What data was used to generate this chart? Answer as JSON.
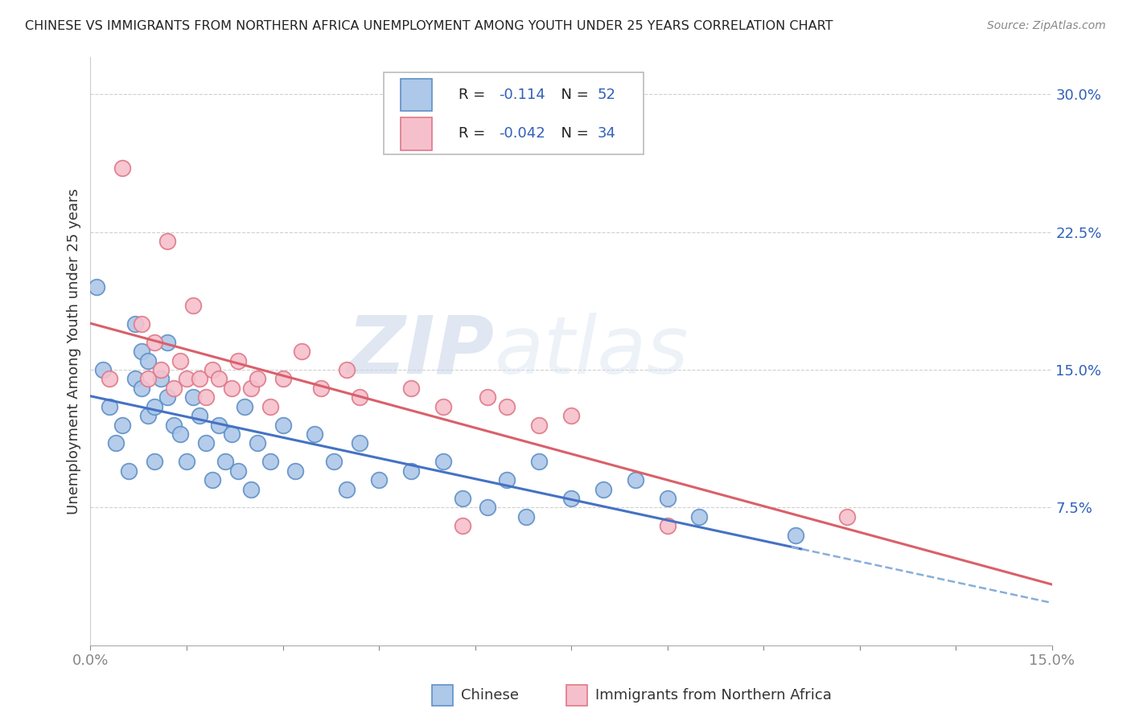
{
  "title": "CHINESE VS IMMIGRANTS FROM NORTHERN AFRICA UNEMPLOYMENT AMONG YOUTH UNDER 25 YEARS CORRELATION CHART",
  "source": "Source: ZipAtlas.com",
  "ylabel": "Unemployment Among Youth under 25 years",
  "label_chinese": "Chinese",
  "label_northern_africa": "Immigrants from Northern Africa",
  "xlim": [
    0.0,
    0.15
  ],
  "ylim": [
    0.0,
    0.32
  ],
  "yticks": [
    0.075,
    0.15,
    0.225,
    0.3
  ],
  "ytick_labels": [
    "7.5%",
    "15.0%",
    "22.5%",
    "30.0%"
  ],
  "xtick_positions": [
    0.0,
    0.015,
    0.03,
    0.045,
    0.06,
    0.075,
    0.09,
    0.105,
    0.12,
    0.135,
    0.15
  ],
  "xtick_labels_shown_pos": [
    0.0,
    0.15
  ],
  "xtick_labels_shown": [
    "0.0%",
    "15.0%"
  ],
  "r_chinese": -0.114,
  "n_chinese": 52,
  "r_northern_africa": -0.042,
  "n_northern_africa": 34,
  "color_chinese_fill": "#adc8e8",
  "color_chinese_edge": "#6090c8",
  "color_na_fill": "#f5c0cc",
  "color_na_edge": "#e07888",
  "line_color_chinese": "#4472c4",
  "line_color_na": "#d9606a",
  "line_color_dashed": "#88aed8",
  "chinese_x": [
    0.001,
    0.002,
    0.003,
    0.004,
    0.005,
    0.006,
    0.007,
    0.007,
    0.008,
    0.008,
    0.009,
    0.009,
    0.01,
    0.01,
    0.011,
    0.012,
    0.012,
    0.013,
    0.014,
    0.015,
    0.016,
    0.017,
    0.018,
    0.019,
    0.02,
    0.021,
    0.022,
    0.023,
    0.024,
    0.025,
    0.026,
    0.028,
    0.03,
    0.032,
    0.035,
    0.038,
    0.04,
    0.042,
    0.045,
    0.05,
    0.055,
    0.058,
    0.062,
    0.065,
    0.068,
    0.07,
    0.075,
    0.08,
    0.085,
    0.09,
    0.095,
    0.11
  ],
  "chinese_y": [
    0.195,
    0.15,
    0.13,
    0.11,
    0.12,
    0.095,
    0.145,
    0.175,
    0.14,
    0.16,
    0.125,
    0.155,
    0.13,
    0.1,
    0.145,
    0.135,
    0.165,
    0.12,
    0.115,
    0.1,
    0.135,
    0.125,
    0.11,
    0.09,
    0.12,
    0.1,
    0.115,
    0.095,
    0.13,
    0.085,
    0.11,
    0.1,
    0.12,
    0.095,
    0.115,
    0.1,
    0.085,
    0.11,
    0.09,
    0.095,
    0.1,
    0.08,
    0.075,
    0.09,
    0.07,
    0.1,
    0.08,
    0.085,
    0.09,
    0.08,
    0.07,
    0.06
  ],
  "na_x": [
    0.003,
    0.005,
    0.008,
    0.009,
    0.01,
    0.011,
    0.012,
    0.013,
    0.014,
    0.015,
    0.016,
    0.017,
    0.018,
    0.019,
    0.02,
    0.022,
    0.023,
    0.025,
    0.026,
    0.028,
    0.03,
    0.033,
    0.036,
    0.04,
    0.042,
    0.05,
    0.055,
    0.058,
    0.062,
    0.065,
    0.07,
    0.075,
    0.09,
    0.118
  ],
  "na_y": [
    0.145,
    0.26,
    0.175,
    0.145,
    0.165,
    0.15,
    0.22,
    0.14,
    0.155,
    0.145,
    0.185,
    0.145,
    0.135,
    0.15,
    0.145,
    0.14,
    0.155,
    0.14,
    0.145,
    0.13,
    0.145,
    0.16,
    0.14,
    0.15,
    0.135,
    0.14,
    0.13,
    0.065,
    0.135,
    0.13,
    0.12,
    0.125,
    0.065,
    0.07
  ]
}
